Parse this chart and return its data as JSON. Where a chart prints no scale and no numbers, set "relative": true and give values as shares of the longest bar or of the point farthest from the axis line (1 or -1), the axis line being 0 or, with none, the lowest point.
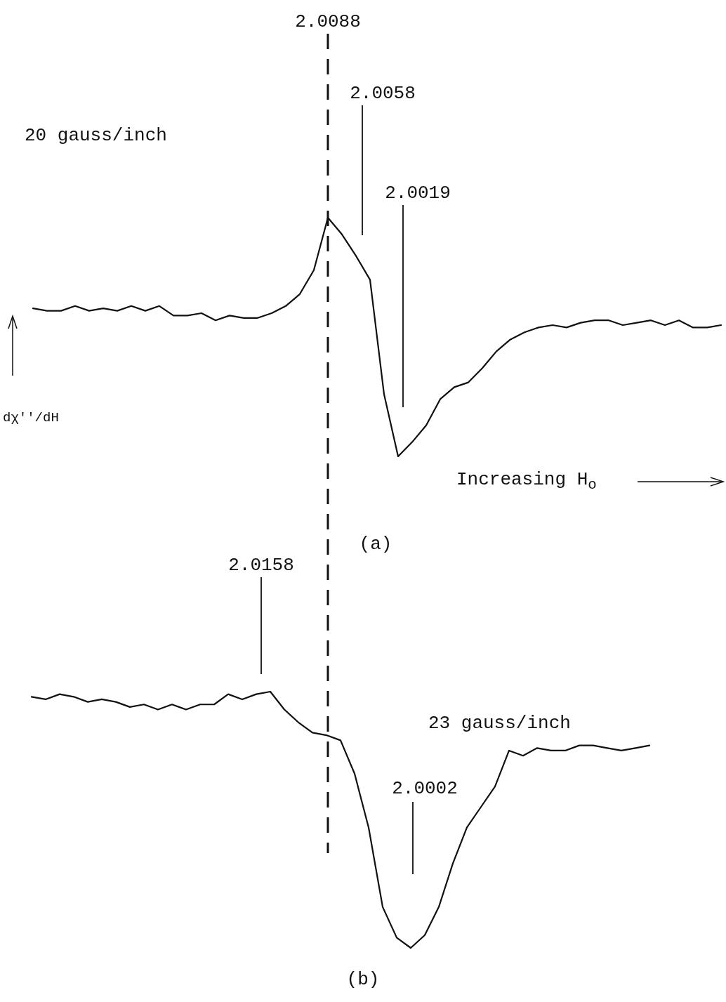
{
  "chart_data": [
    {
      "type": "line",
      "relative": true,
      "color": "#111111",
      "ylabel": "dχ''/dH",
      "annotations": [
        "20 gauss/inch",
        "2.0088",
        "2.0058",
        "2.0019",
        "Increasing H$_{o}$",
        "(a)"
      ],
      "categories": [
        null,
        null,
        null,
        null,
        null,
        null,
        null,
        null,
        null,
        null,
        null,
        null,
        null,
        null,
        null,
        null,
        null,
        null,
        null,
        null,
        null,
        null,
        null,
        null,
        null,
        null,
        null,
        null,
        null,
        null,
        null,
        null,
        null,
        null,
        null,
        null,
        null,
        null,
        null,
        null,
        null,
        null,
        null,
        null,
        null,
        null,
        null,
        null,
        null,
        null
      ],
      "values": [
        0.62,
        0.61,
        0.61,
        0.63,
        0.61,
        0.62,
        0.61,
        0.63,
        0.61,
        0.63,
        0.59,
        0.59,
        0.6,
        0.57,
        0.59,
        0.58,
        0.58,
        0.6,
        0.63,
        0.68,
        0.78,
        1,
        0.93,
        0.84,
        0.74,
        0.26,
        0,
        0.06,
        0.13,
        0.24,
        0.29,
        0.31,
        0.37,
        0.44,
        0.49,
        0.52,
        0.54,
        0.55,
        0.54,
        0.56,
        0.57,
        0.57,
        0.55,
        0.56,
        0.57,
        0.55,
        0.57,
        0.54,
        0.54,
        0.55
      ]
    },
    {
      "type": "line",
      "relative": true,
      "color": "#111111",
      "annotations": [
        "2.0158",
        "23 gauss/inch",
        "2.0002",
        "(b)"
      ],
      "categories": [
        null,
        null,
        null,
        null,
        null,
        null,
        null,
        null,
        null,
        null,
        null,
        null,
        null,
        null,
        null,
        null,
        null,
        null,
        null,
        null,
        null,
        null,
        null,
        null,
        null,
        null,
        null,
        null,
        null,
        null,
        null,
        null,
        null,
        null,
        null,
        null,
        null,
        null,
        null,
        null,
        null,
        null,
        null,
        null,
        null
      ],
      "values": [
        0.98,
        0.97,
        0.99,
        0.98,
        0.96,
        0.97,
        0.96,
        0.94,
        0.95,
        0.93,
        0.95,
        0.93,
        0.95,
        0.95,
        0.99,
        0.97,
        0.99,
        1,
        0.93,
        0.88,
        0.84,
        0.83,
        0.81,
        0.68,
        0.47,
        0.16,
        0.04,
        0,
        0.05,
        0.16,
        0.33,
        0.47,
        0.55,
        0.63,
        0.77,
        0.75,
        0.78,
        0.77,
        0.77,
        0.79,
        0.79,
        0.78,
        0.77,
        0.78,
        0.79
      ]
    }
  ]
}
